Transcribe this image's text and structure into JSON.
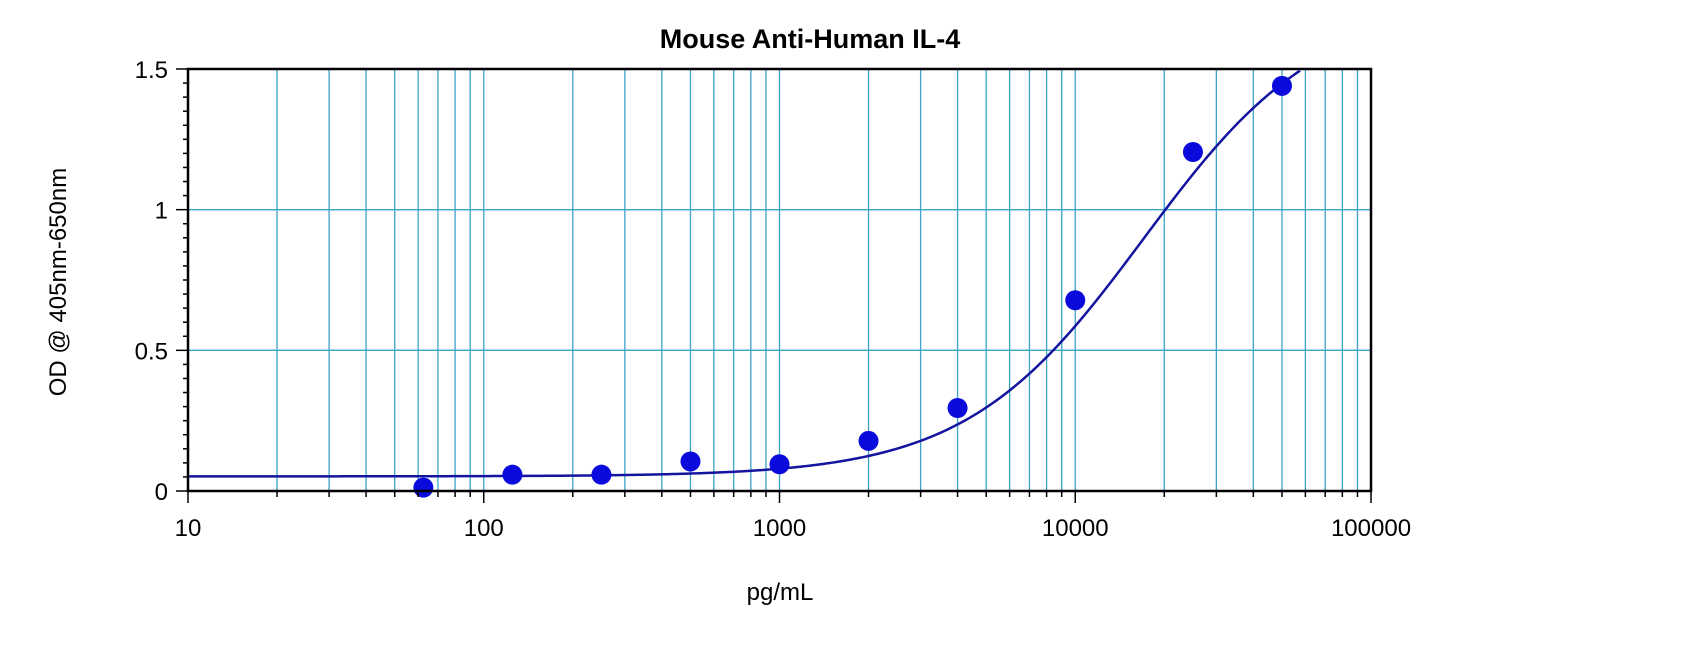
{
  "chart_data": {
    "type": "scatter",
    "title": "Mouse Anti-Human IL-4",
    "xlabel": "pg/mL",
    "ylabel": "OD @ 405nm-650nm",
    "x_scale": "log",
    "xlim": [
      10,
      100000
    ],
    "ylim": [
      0,
      1.5
    ],
    "x_tick_labels": [
      "10",
      "100",
      "1000",
      "10000",
      "100000"
    ],
    "y_tick_labels": [
      "0",
      "0.5",
      "1",
      "1.5"
    ],
    "grid": true,
    "legend": "none",
    "series": [
      {
        "x": [
          62.5,
          125,
          250,
          500,
          1000,
          2000,
          4000,
          10000,
          25000,
          50000
        ],
        "y": [
          0.012,
          0.058,
          0.058,
          0.105,
          0.095,
          0.178,
          0.295,
          0.678,
          1.205,
          1.44
        ]
      }
    ],
    "fit_curve": {
      "type": "4PL",
      "bottom": 0.052,
      "top": 1.74,
      "ec50": 17000,
      "hill": 1.45
    },
    "colors": {
      "points": "#0a0adc",
      "curve": "#1414a0",
      "grid": "#3aa3c6",
      "axes": "#000000"
    }
  }
}
